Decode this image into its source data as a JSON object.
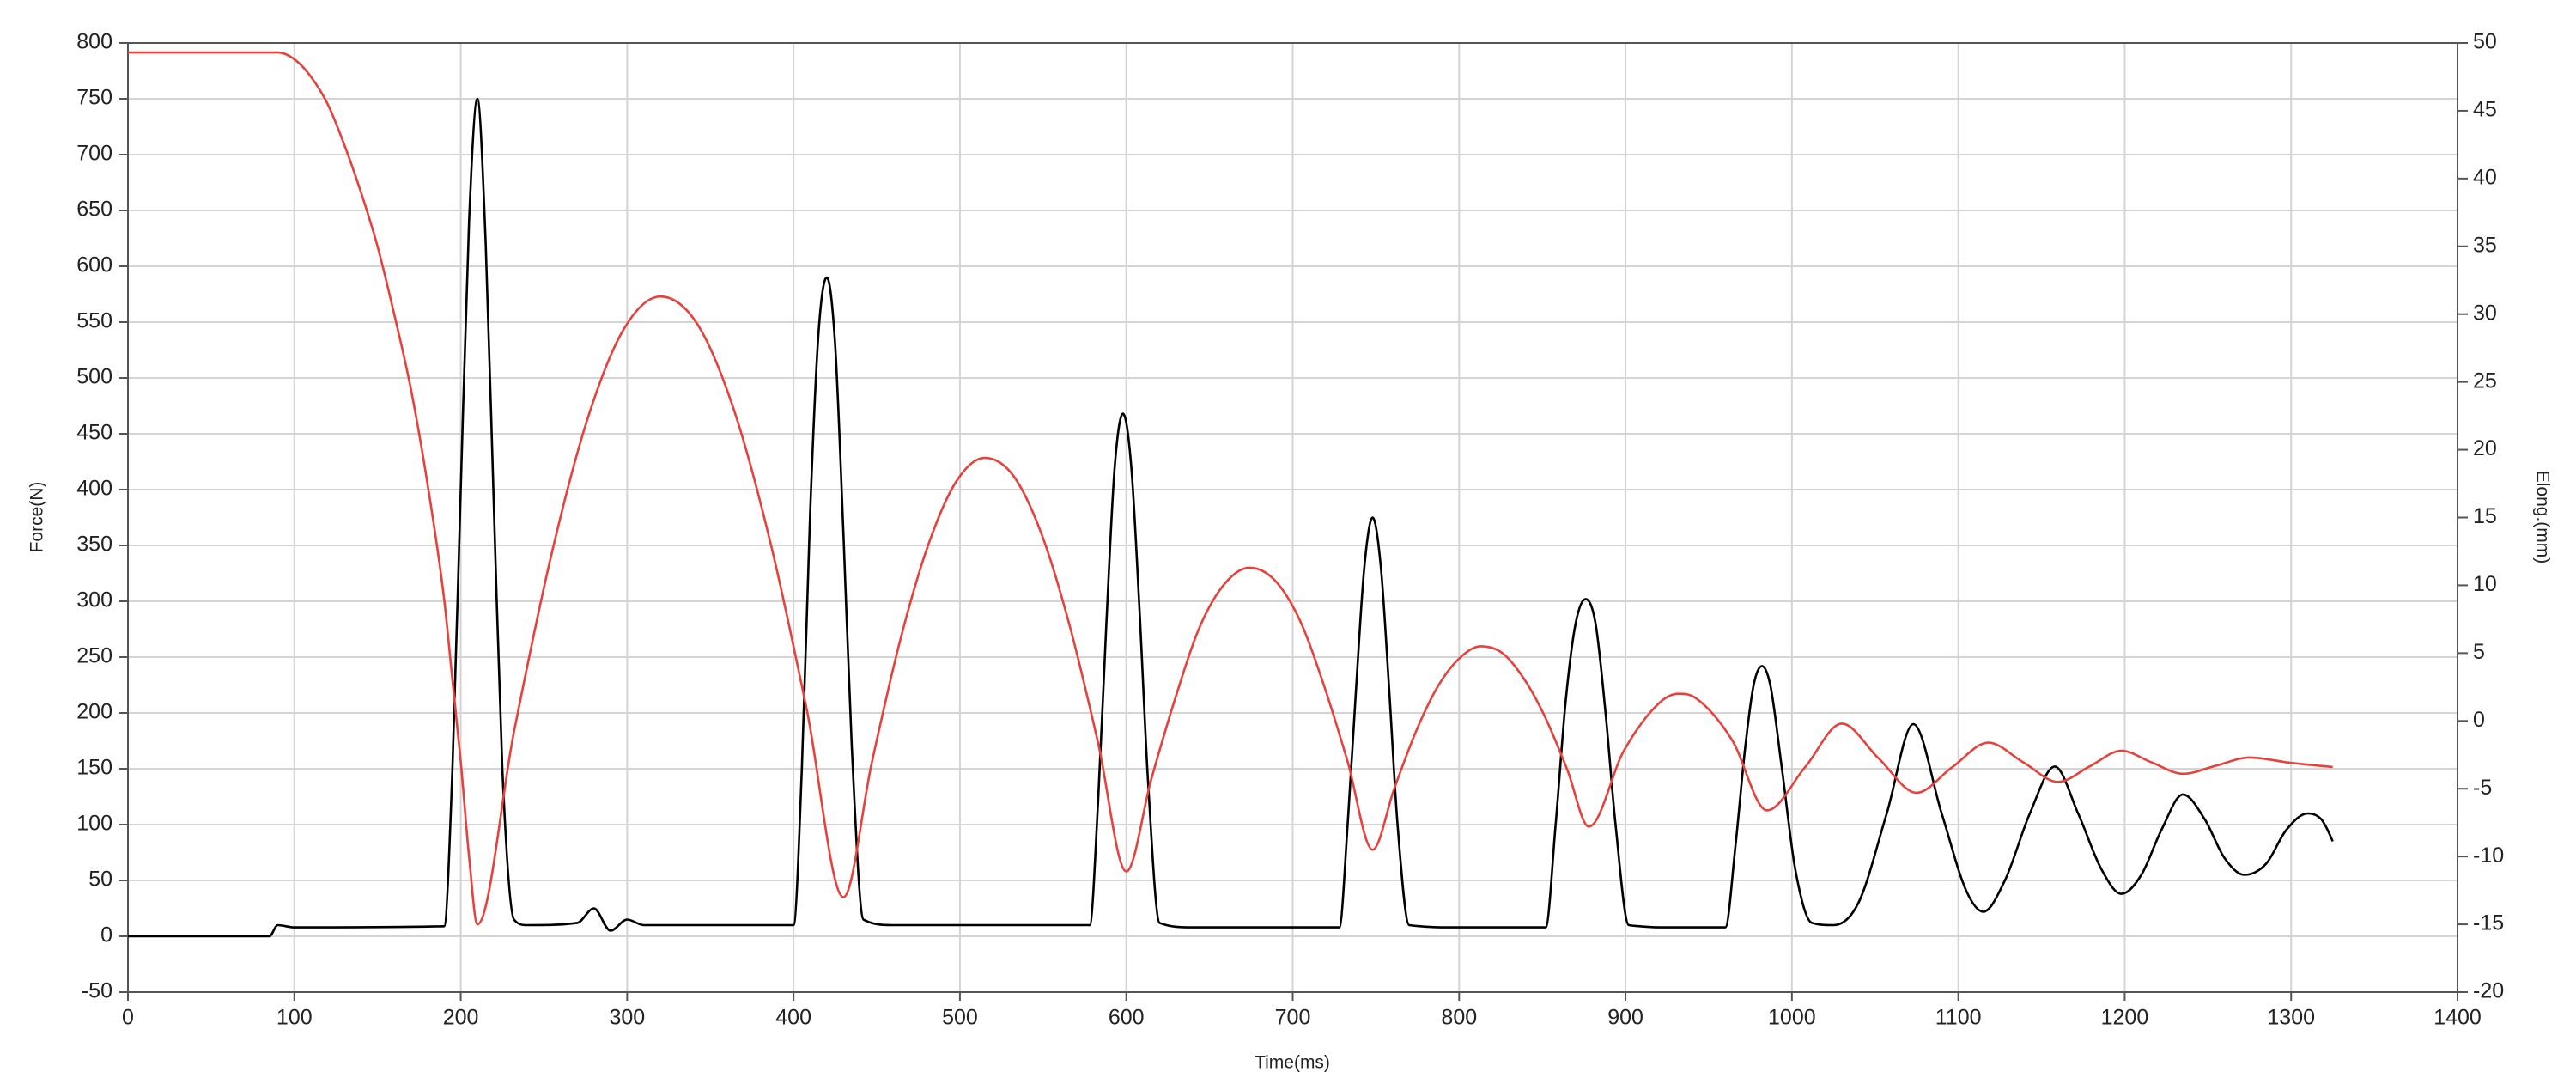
{
  "chart_data": {
    "type": "line",
    "x_label": "Time(ms)",
    "y_label": "Force(N)",
    "y2_label": "Elong.(mm)",
    "xlim": [
      0,
      1400
    ],
    "xticks": [
      0,
      100,
      200,
      300,
      400,
      500,
      600,
      700,
      800,
      900,
      1000,
      1100,
      1200,
      1300,
      1400
    ],
    "ylim": [
      -50,
      800
    ],
    "yticks": [
      -50,
      0,
      50,
      100,
      150,
      200,
      250,
      300,
      350,
      400,
      450,
      500,
      550,
      600,
      650,
      700,
      750,
      800
    ],
    "y2lim": [
      -20,
      50
    ],
    "y2ticks": [
      -20,
      -15,
      -10,
      -5,
      0,
      5,
      10,
      15,
      20,
      25,
      30,
      35,
      40,
      45,
      50
    ],
    "grid": true,
    "series": [
      {
        "color": "#000000",
        "x": [
          0,
          85,
          90,
          100,
          190,
          195,
          200,
          205,
          210,
          215,
          220,
          225,
          232,
          240,
          270,
          280,
          290,
          300,
          310,
          400,
          405,
          410,
          415,
          420,
          425,
          430,
          435,
          442,
          460,
          578,
          583,
          588,
          593,
          598,
          603,
          608,
          613,
          620,
          640,
          728,
          733,
          738,
          743,
          748,
          753,
          758,
          763,
          770,
          800,
          852,
          858,
          864,
          870,
          876,
          882,
          888,
          894,
          902,
          930,
          960,
          966,
          972,
          977,
          982,
          987,
          994,
          1002,
          1012,
          1025,
          1040,
          1057,
          1073,
          1090,
          1105,
          1115,
          1128,
          1143,
          1158,
          1172,
          1186,
          1198,
          1210,
          1222,
          1235,
          1248,
          1260,
          1272,
          1285,
          1297,
          1310,
          1318,
          1322,
          1325
        ],
        "values": [
          0,
          0,
          10,
          8,
          9,
          150,
          400,
          640,
          750,
          620,
          380,
          150,
          15,
          10,
          12,
          25,
          5,
          15,
          10,
          10,
          150,
          380,
          540,
          590,
          530,
          360,
          170,
          15,
          10,
          10,
          120,
          280,
          420,
          468,
          420,
          290,
          140,
          12,
          8,
          8,
          100,
          220,
          330,
          375,
          330,
          220,
          100,
          10,
          8,
          8,
          100,
          210,
          280,
          302,
          280,
          200,
          100,
          10,
          8,
          8,
          80,
          170,
          225,
          242,
          225,
          150,
          60,
          12,
          10,
          30,
          110,
          190,
          110,
          40,
          22,
          50,
          110,
          152,
          110,
          60,
          38,
          55,
          95,
          127,
          105,
          70,
          55,
          65,
          95,
          110,
          105,
          95,
          85
        ]
      },
      {
        "color": "#e8413c",
        "axis": "y2",
        "x": [
          0,
          90,
          100,
          110,
          120,
          130,
          140,
          150,
          160,
          170,
          180,
          190,
          195,
          200,
          205,
          210,
          232,
          254,
          276,
          298,
          320,
          342,
          364,
          386,
          408,
          430,
          447,
          464,
          481,
          498,
          515,
          532,
          549,
          566,
          583,
          600,
          615,
          630,
          644,
          659,
          674,
          689,
          704,
          718,
          733,
          748,
          761,
          774,
          787,
          800,
          813,
          826,
          839,
          852,
          865,
          878,
          899,
          921,
          932,
          942,
          964,
          985,
          1008,
          1030,
          1052,
          1075,
          1096,
          1118,
          1139,
          1160,
          1179,
          1198,
          1216,
          1235,
          1255,
          1275,
          1300,
          1325
        ],
        "values": [
          49.3,
          49.3,
          48.8,
          47.5,
          45.5,
          42.5,
          39,
          35,
          30,
          24.5,
          17.5,
          9,
          3,
          -3,
          -10,
          -15,
          -0.8,
          12.0,
          22.2,
          28.9,
          31.3,
          29.3,
          23.0,
          13.2,
          0.8,
          -13,
          -3.1,
          5.9,
          13.0,
          17.7,
          19.4,
          18.1,
          13.8,
          7.0,
          -1.6,
          -11.1,
          -4.3,
          1.9,
          6.9,
          10.1,
          11.3,
          10.4,
          7.5,
          2.9,
          -3.0,
          -9.5,
          -5.0,
          -0.8,
          2.5,
          4.6,
          5.5,
          5.0,
          3.1,
          0.2,
          -3.6,
          -7.8,
          -2.2,
          1.4,
          2.0,
          1.7,
          -1.4,
          -6.6,
          -3.4,
          -0.2,
          -2.75,
          -5.3,
          -3.45,
          -1.6,
          -3.05,
          -4.5,
          -3.35,
          -2.2,
          -3.05,
          -3.9,
          -3.3,
          -2.7,
          -3.1,
          -3.4
        ]
      }
    ]
  }
}
